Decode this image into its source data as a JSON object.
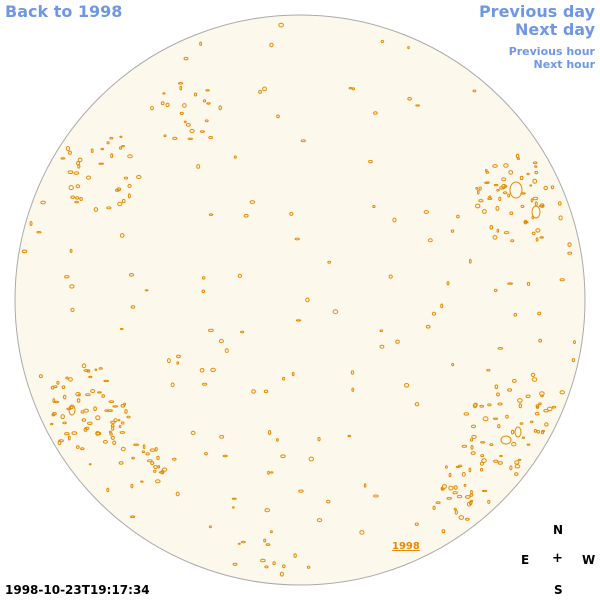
{
  "nav": {
    "back_label": "Back to 1998",
    "prev_day_label": "Previous day",
    "next_day_label": "Next day",
    "prev_hour_label": "Previous hour",
    "next_hour_label": "Next hour"
  },
  "compass": {
    "north": "N",
    "east": "E",
    "center": "+",
    "west": "W",
    "south": "S"
  },
  "timestamp": "1998-10-23T19:17:34",
  "year_label": "1998",
  "colors": {
    "link": "#6f97e6",
    "disk_fill": "#fdf8ec",
    "disk_edge": "#aaaaaa",
    "contour": "#e68a00"
  }
}
